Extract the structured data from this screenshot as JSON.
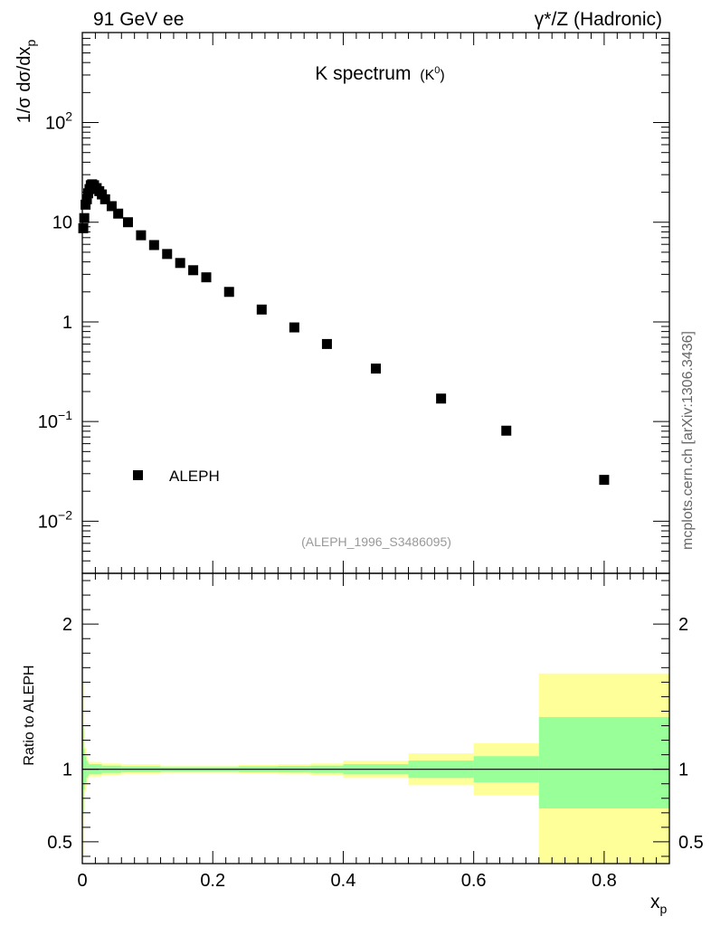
{
  "header": {
    "left": "91 GeV ee",
    "right": "γ*/Z (Hadronic)"
  },
  "side_label": "mcplots.cern.ch [arXiv:1306.3436]",
  "chart_data": [
    {
      "type": "scatter",
      "title_main": "K spectrum",
      "title_sub": "(K",
      "title_sub_sup": "0",
      "title_sub_end": ")",
      "ylabel_pre": "1/σ dσ/dx",
      "ylabel_sub": "p",
      "yscale": "log",
      "ylim": [
        0.003,
        800
      ],
      "xlim": [
        0,
        0.9
      ],
      "y_tick_labels": [
        {
          "value": 0.01,
          "base": "10",
          "exp": "−2"
        },
        {
          "value": 0.1,
          "base": "10",
          "exp": "−1"
        },
        {
          "value": 1,
          "base": "1",
          "exp": ""
        },
        {
          "value": 10,
          "base": "10",
          "exp": ""
        },
        {
          "value": 100,
          "base": "10",
          "exp": "2"
        }
      ],
      "legend": {
        "position": "bottom-left",
        "entries": [
          "ALEPH"
        ]
      },
      "annotation": "(ALEPH_1996_S3486095)",
      "series": [
        {
          "name": "ALEPH",
          "marker": "square",
          "color": "#000000",
          "x": [
            0.0015,
            0.003,
            0.005,
            0.007,
            0.009,
            0.011,
            0.013,
            0.015,
            0.018,
            0.022,
            0.026,
            0.03,
            0.035,
            0.045,
            0.055,
            0.07,
            0.09,
            0.11,
            0.13,
            0.15,
            0.17,
            0.19,
            0.225,
            0.275,
            0.325,
            0.375,
            0.45,
            0.55,
            0.65,
            0.8
          ],
          "y": [
            8.7,
            11.0,
            15.0,
            17.0,
            19.5,
            21.5,
            23.5,
            24.0,
            23.5,
            22.0,
            20.5,
            19.0,
            17.0,
            14.5,
            12.2,
            10.0,
            7.4,
            5.9,
            4.8,
            3.9,
            3.3,
            2.8,
            2.0,
            1.33,
            0.88,
            0.6,
            0.34,
            0.17,
            0.081,
            0.026
          ]
        }
      ]
    },
    {
      "type": "area",
      "ylabel": "Ratio to ALEPH",
      "xlabel_pre": "x",
      "xlabel_sub": "p",
      "ylim": [
        0.35,
        2.35
      ],
      "xlim": [
        0,
        0.9
      ],
      "x_tick_labels": [
        "0",
        "0.2",
        "0.4",
        "0.6",
        "0.8"
      ],
      "x_tick_values": [
        0,
        0.2,
        0.4,
        0.6,
        0.8
      ],
      "y_tick_labels": [
        "0.5",
        "1",
        "2"
      ],
      "y_tick_values": [
        0.5,
        1,
        2
      ],
      "reference_line": 1,
      "band_colors": {
        "inner": "#99ff99",
        "outer": "#ffff99"
      },
      "bins": [
        {
          "x0": 0.0,
          "x1": 0.002,
          "outer": [
            0.4,
            1.6
          ],
          "inner": [
            0.7,
            1.3
          ]
        },
        {
          "x0": 0.002,
          "x1": 0.004,
          "outer": [
            0.72,
            1.28
          ],
          "inner": [
            0.86,
            1.14
          ]
        },
        {
          "x0": 0.004,
          "x1": 0.006,
          "outer": [
            0.85,
            1.15
          ],
          "inner": [
            0.91,
            1.09
          ]
        },
        {
          "x0": 0.006,
          "x1": 0.008,
          "outer": [
            0.9,
            1.1
          ],
          "inner": [
            0.94,
            1.06
          ]
        },
        {
          "x0": 0.008,
          "x1": 0.01,
          "outer": [
            0.93,
            1.07
          ],
          "inner": [
            0.955,
            1.045
          ]
        },
        {
          "x0": 0.01,
          "x1": 0.03,
          "outer": [
            0.95,
            1.05
          ],
          "inner": [
            0.965,
            1.035
          ]
        },
        {
          "x0": 0.03,
          "x1": 0.06,
          "outer": [
            0.96,
            1.04
          ],
          "inner": [
            0.975,
            1.025
          ]
        },
        {
          "x0": 0.06,
          "x1": 0.12,
          "outer": [
            0.965,
            1.035
          ],
          "inner": [
            0.98,
            1.02
          ]
        },
        {
          "x0": 0.12,
          "x1": 0.24,
          "outer": [
            0.975,
            1.025
          ],
          "inner": [
            0.985,
            1.015
          ]
        },
        {
          "x0": 0.24,
          "x1": 0.3,
          "outer": [
            0.97,
            1.03
          ],
          "inner": [
            0.98,
            1.02
          ]
        },
        {
          "x0": 0.3,
          "x1": 0.35,
          "outer": [
            0.965,
            1.035
          ],
          "inner": [
            0.978,
            1.022
          ]
        },
        {
          "x0": 0.35,
          "x1": 0.4,
          "outer": [
            0.96,
            1.04
          ],
          "inner": [
            0.975,
            1.025
          ]
        },
        {
          "x0": 0.4,
          "x1": 0.5,
          "outer": [
            0.94,
            1.06
          ],
          "inner": [
            0.965,
            1.035
          ]
        },
        {
          "x0": 0.5,
          "x1": 0.6,
          "outer": [
            0.89,
            1.11
          ],
          "inner": [
            0.94,
            1.06
          ]
        },
        {
          "x0": 0.6,
          "x1": 0.7,
          "outer": [
            0.82,
            1.18
          ],
          "inner": [
            0.91,
            1.09
          ]
        },
        {
          "x0": 0.7,
          "x1": 0.9,
          "outer": [
            0.35,
            1.66
          ],
          "inner": [
            0.73,
            1.36
          ]
        }
      ]
    }
  ]
}
